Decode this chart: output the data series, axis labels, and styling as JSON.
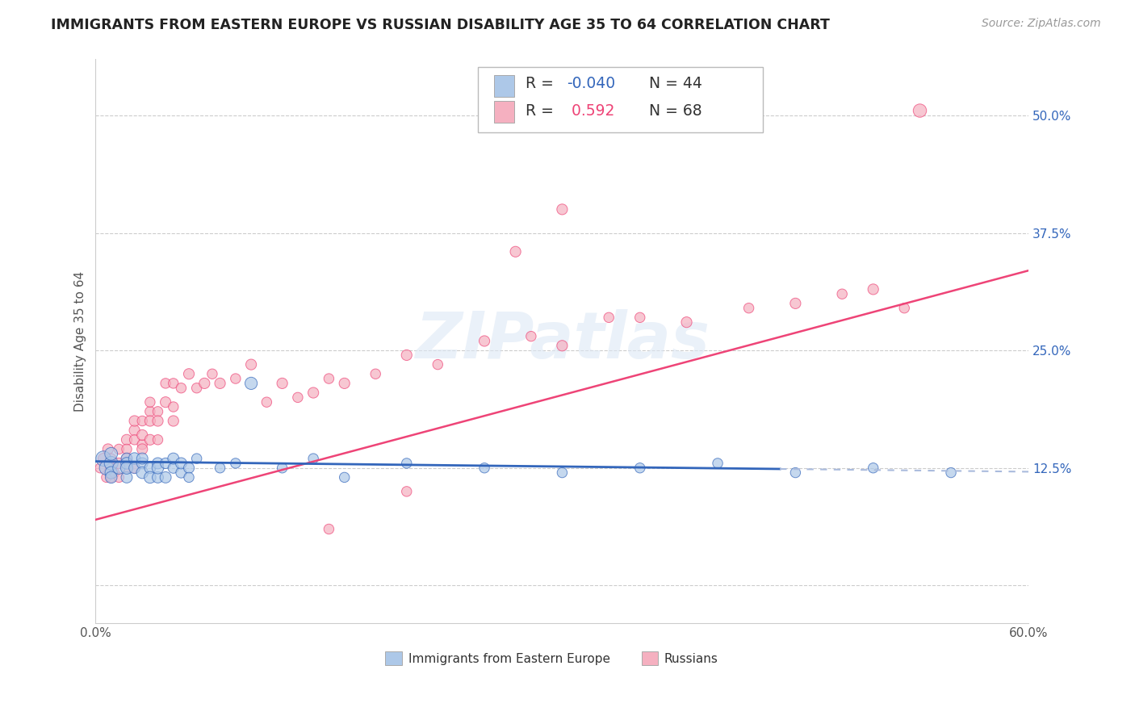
{
  "title": "IMMIGRANTS FROM EASTERN EUROPE VS RUSSIAN DISABILITY AGE 35 TO 64 CORRELATION CHART",
  "source": "Source: ZipAtlas.com",
  "ylabel": "Disability Age 35 to 64",
  "xlim": [
    0.0,
    0.6
  ],
  "ylim": [
    -0.04,
    0.56
  ],
  "blue_R": "-0.040",
  "blue_N": "44",
  "pink_R": "0.592",
  "pink_N": "68",
  "blue_color": "#adc8e8",
  "pink_color": "#f5b0c0",
  "blue_line_color": "#3366bb",
  "pink_line_color": "#ee4477",
  "legend_label_blue": "Immigrants from Eastern Europe",
  "legend_label_pink": "Russians",
  "blue_scatter_x": [
    0.005,
    0.007,
    0.01,
    0.01,
    0.01,
    0.01,
    0.015,
    0.02,
    0.02,
    0.02,
    0.02,
    0.025,
    0.025,
    0.03,
    0.03,
    0.03,
    0.035,
    0.035,
    0.04,
    0.04,
    0.04,
    0.045,
    0.045,
    0.05,
    0.05,
    0.055,
    0.055,
    0.06,
    0.06,
    0.065,
    0.08,
    0.09,
    0.1,
    0.12,
    0.14,
    0.16,
    0.2,
    0.25,
    0.3,
    0.35,
    0.4,
    0.45,
    0.5,
    0.55
  ],
  "blue_scatter_y": [
    0.135,
    0.125,
    0.13,
    0.14,
    0.12,
    0.115,
    0.125,
    0.135,
    0.115,
    0.13,
    0.125,
    0.135,
    0.125,
    0.13,
    0.12,
    0.135,
    0.125,
    0.115,
    0.13,
    0.115,
    0.125,
    0.13,
    0.115,
    0.125,
    0.135,
    0.12,
    0.13,
    0.125,
    0.115,
    0.135,
    0.125,
    0.13,
    0.215,
    0.125,
    0.135,
    0.115,
    0.13,
    0.125,
    0.12,
    0.125,
    0.13,
    0.12,
    0.125,
    0.12
  ],
  "pink_scatter_x": [
    0.003,
    0.005,
    0.007,
    0.008,
    0.01,
    0.01,
    0.01,
    0.012,
    0.015,
    0.015,
    0.015,
    0.02,
    0.02,
    0.02,
    0.02,
    0.025,
    0.025,
    0.025,
    0.025,
    0.03,
    0.03,
    0.03,
    0.03,
    0.035,
    0.035,
    0.035,
    0.035,
    0.04,
    0.04,
    0.04,
    0.045,
    0.045,
    0.05,
    0.05,
    0.05,
    0.055,
    0.06,
    0.065,
    0.07,
    0.075,
    0.08,
    0.09,
    0.1,
    0.11,
    0.12,
    0.13,
    0.14,
    0.15,
    0.16,
    0.18,
    0.2,
    0.22,
    0.25,
    0.28,
    0.3,
    0.33,
    0.38,
    0.42,
    0.45,
    0.48,
    0.5,
    0.52,
    0.53,
    0.27,
    0.3,
    0.35,
    0.2,
    0.15
  ],
  "pink_scatter_y": [
    0.125,
    0.135,
    0.115,
    0.145,
    0.115,
    0.125,
    0.135,
    0.12,
    0.13,
    0.115,
    0.145,
    0.155,
    0.145,
    0.135,
    0.125,
    0.125,
    0.165,
    0.155,
    0.175,
    0.15,
    0.16,
    0.175,
    0.145,
    0.185,
    0.175,
    0.195,
    0.155,
    0.185,
    0.175,
    0.155,
    0.215,
    0.195,
    0.19,
    0.175,
    0.215,
    0.21,
    0.225,
    0.21,
    0.215,
    0.225,
    0.215,
    0.22,
    0.235,
    0.195,
    0.215,
    0.2,
    0.205,
    0.22,
    0.215,
    0.225,
    0.245,
    0.235,
    0.26,
    0.265,
    0.255,
    0.285,
    0.28,
    0.295,
    0.3,
    0.31,
    0.315,
    0.295,
    0.505,
    0.355,
    0.4,
    0.285,
    0.1,
    0.06
  ],
  "blue_sizes": [
    180,
    160,
    150,
    130,
    120,
    110,
    120,
    100,
    100,
    110,
    120,
    110,
    100,
    100,
    110,
    100,
    100,
    110,
    100,
    100,
    110,
    90,
    100,
    90,
    100,
    90,
    100,
    90,
    80,
    80,
    80,
    80,
    120,
    80,
    80,
    80,
    80,
    80,
    80,
    80,
    80,
    80,
    80,
    80
  ],
  "pink_sizes": [
    80,
    90,
    80,
    90,
    80,
    90,
    80,
    80,
    90,
    80,
    80,
    90,
    80,
    90,
    80,
    80,
    90,
    80,
    90,
    80,
    90,
    80,
    90,
    80,
    90,
    80,
    90,
    80,
    90,
    80,
    80,
    90,
    80,
    90,
    80,
    80,
    90,
    80,
    90,
    80,
    90,
    80,
    90,
    80,
    90,
    80,
    90,
    80,
    90,
    80,
    90,
    80,
    90,
    80,
    90,
    80,
    90,
    80,
    90,
    80,
    90,
    80,
    140,
    90,
    90,
    80,
    80,
    80
  ],
  "blue_line_x": [
    0.0,
    0.6
  ],
  "blue_line_y": [
    0.132,
    0.121
  ],
  "blue_line_solid_end": 0.44,
  "pink_line_x": [
    0.0,
    0.6
  ],
  "pink_line_y": [
    0.07,
    0.335
  ]
}
